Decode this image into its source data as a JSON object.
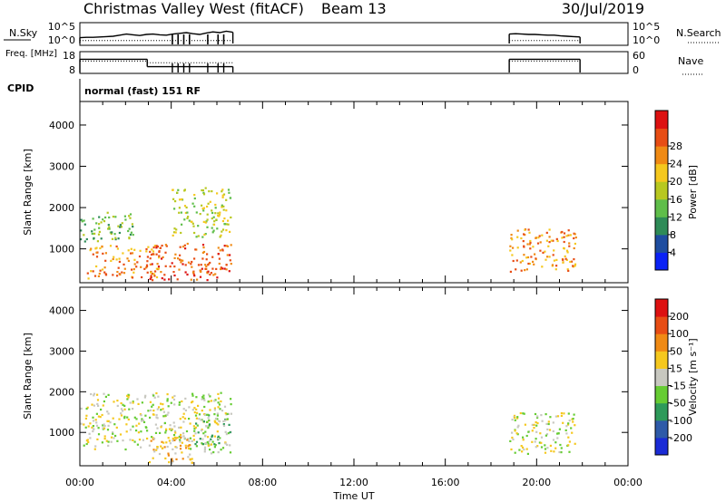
{
  "header": {
    "station": "Christmas Valley West (fitACF)",
    "beam": "Beam 13",
    "date": "30/Jul/2019"
  },
  "chart_data": [
    {
      "type": "line",
      "panel": "nsky-nsearch",
      "left_label": "N.Sky",
      "right_label": "N.Search",
      "left_ticks": [
        "10^5",
        "10^0"
      ],
      "right_ticks": [
        "10^5",
        "10^0"
      ],
      "segments": [
        {
          "t_start": 0.0,
          "t_end": 6.7,
          "nsky_log": [
            1.6,
            1.7,
            1.7,
            1.8,
            1.9,
            2.0,
            2.3,
            2.6,
            2.4,
            2.2,
            2.5,
            2.6,
            2.4,
            2.3,
            2.6,
            2.8,
            3.0,
            2.7,
            2.5,
            2.9,
            3.2,
            3.0,
            3.4,
            3.1
          ],
          "nsearch_log": 0.8
        },
        {
          "t_start": 18.8,
          "t_end": 21.9,
          "nsky_log": [
            2.6,
            2.7,
            2.6,
            2.5,
            2.5,
            2.4,
            2.3,
            2.3,
            2.1,
            2.0,
            1.9,
            1.8
          ],
          "nsearch_log": 0.8
        }
      ],
      "dropouts_hours": [
        4.05,
        4.3,
        4.55,
        4.8,
        5.6,
        6.05,
        6.3
      ]
    },
    {
      "type": "line",
      "panel": "freq-nave",
      "left_label": "Freq. [MHz]",
      "right_label": "Nave",
      "left_ticks": [
        "18",
        "8"
      ],
      "right_ticks": [
        "60",
        "0"
      ],
      "segments": [
        {
          "t_start": 0.0,
          "t_end": 2.95,
          "freq_mhz": 16.1,
          "nave": 42
        },
        {
          "t_start": 2.95,
          "t_end": 6.7,
          "freq_mhz": 11.6,
          "nave": 36
        },
        {
          "t_start": 18.8,
          "t_end": 21.9,
          "freq_mhz": 16.1,
          "nave": 42
        }
      ]
    },
    {
      "type": "heatmap",
      "panel": "power",
      "cpid_label": "CPID",
      "cpid_text": "normal (fast) 151 RF",
      "ylabel": "Slant Range [km]",
      "yticks": [
        "1000",
        "2000",
        "3000",
        "4000"
      ],
      "ylim": [
        180,
        4570
      ],
      "colorbar_label": "Power [dB]",
      "colorbar_ticks": [
        "4",
        "8",
        "12",
        "16",
        "20",
        "24",
        "28"
      ],
      "colorbar_colors": [
        "#0a22f5",
        "#1e4da0",
        "#2e8b57",
        "#5fbe4a",
        "#b8c820",
        "#f5c81e",
        "#f08a14",
        "#e84d14",
        "#dd1111"
      ],
      "scatter_regions": [
        {
          "t": [
            0.0,
            2.4
          ],
          "r": [
            1200,
            1900
          ],
          "level": 3
        },
        {
          "t": [
            0.3,
            3.5
          ],
          "r": [
            300,
            1100
          ],
          "level": 6
        },
        {
          "t": [
            3.0,
            6.6
          ],
          "r": [
            250,
            1150
          ],
          "level": 7
        },
        {
          "t": [
            4.0,
            6.6
          ],
          "r": [
            1300,
            2500
          ],
          "level": 4
        },
        {
          "t": [
            18.8,
            21.7
          ],
          "r": [
            450,
            1500
          ],
          "level": 6
        }
      ]
    },
    {
      "type": "heatmap",
      "panel": "velocity",
      "ylabel": "Slant Range [km]",
      "yticks": [
        "1000",
        "2000",
        "3000",
        "4000"
      ],
      "ylim": [
        180,
        4570
      ],
      "colorbar_label": "Velocity [m s⁻¹]",
      "colorbar_ticks": [
        "200",
        "100",
        "50",
        "15",
        "-15",
        "-50",
        "-100",
        "-200"
      ],
      "colorbar_colors": [
        "#1a2bd6",
        "#2e5aa8",
        "#2e9a5a",
        "#66cc33",
        "#c8c8c0",
        "#f5c81e",
        "#f08a14",
        "#e84d14",
        "#dd1111"
      ],
      "scatter_regions": [
        {
          "t": [
            0.0,
            6.6
          ],
          "r": [
            600,
            2000
          ],
          "level": 4
        },
        {
          "t": [
            3.0,
            5.0
          ],
          "r": [
            250,
            900
          ],
          "level": 5
        },
        {
          "t": [
            5.0,
            6.6
          ],
          "r": [
            500,
            1500
          ],
          "level": 3
        },
        {
          "t": [
            18.8,
            21.7
          ],
          "r": [
            450,
            1500
          ],
          "level": 4
        }
      ]
    }
  ],
  "xaxis": {
    "xlabel": "Time UT",
    "ticks": [
      "00:00",
      "04:00",
      "08:00",
      "12:00",
      "16:00",
      "20:00",
      "00:00"
    ],
    "xlim_hours": [
      0,
      24
    ]
  }
}
